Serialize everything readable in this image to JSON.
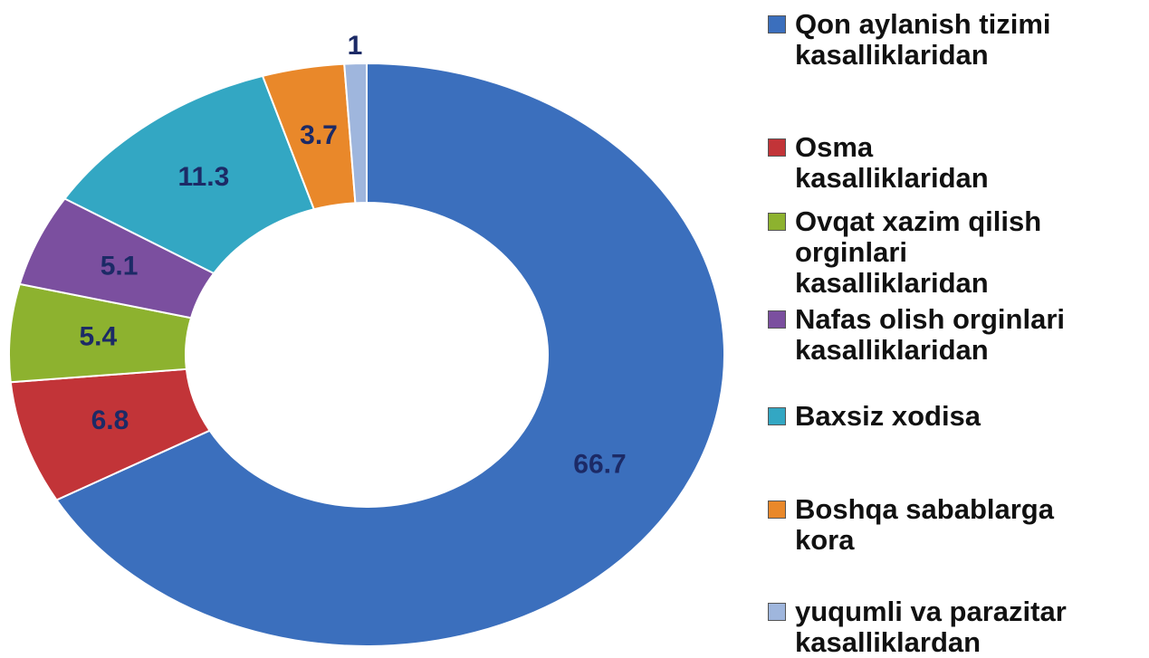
{
  "chart_data": {
    "type": "donut",
    "categories": [
      "Qon aylanish tizimi\nkasalliklaridan",
      "Osma\nkasalliklaridan",
      "Ovqat xazim qilish\norginlari\nkasalliklaridan",
      "Nafas olish orginlari\nkasalliklaridan",
      "Baxsiz xodisa",
      "Boshqa sabablarga\nkora",
      "yuqumli va parazitar\nkasalliklardan"
    ],
    "values": [
      66.7,
      6.8,
      5.4,
      5.1,
      11.3,
      3.7,
      1
    ],
    "colors": [
      "#3b6fbd",
      "#c23438",
      "#8db22f",
      "#7b4f9f",
      "#33a7c3",
      "#e9882a",
      "#9fb6dd"
    ]
  }
}
